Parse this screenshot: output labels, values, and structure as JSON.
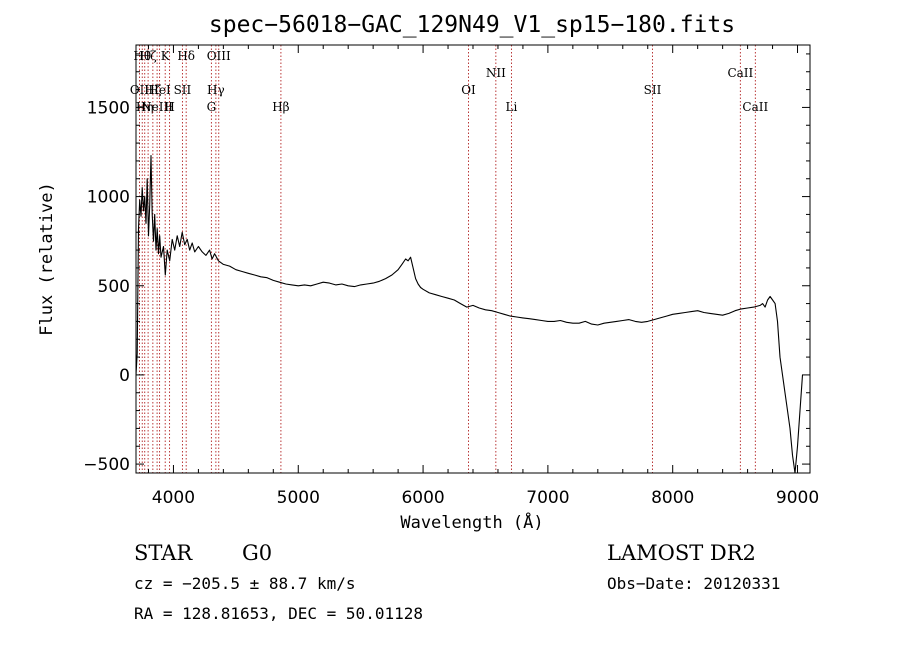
{
  "chart_data": {
    "type": "line",
    "title": "spec−56018−GAC_129N49_V1_sp15−180.fits",
    "xlabel": "Wavelength (Å)",
    "ylabel": "Flux (relative)",
    "xlim": [
      3700,
      9100
    ],
    "ylim": [
      -550,
      1850
    ],
    "x_ticks": [
      4000,
      5000,
      6000,
      7000,
      8000,
      9000
    ],
    "y_ticks": [
      -500,
      0,
      500,
      1000,
      1500
    ],
    "x_tick_labels": [
      "4000",
      "5000",
      "6000",
      "7000",
      "8000",
      "9000"
    ],
    "y_tick_labels": [
      "−500",
      "0",
      "500",
      "1000",
      "1500"
    ],
    "grid": false,
    "line_color": "#000000",
    "marker_color": "#b22222",
    "series": [
      {
        "points": [
          [
            3700,
            0
          ],
          [
            3710,
            120
          ],
          [
            3720,
            820
          ],
          [
            3730,
            980
          ],
          [
            3740,
            890
          ],
          [
            3750,
            1050
          ],
          [
            3760,
            920
          ],
          [
            3770,
            1000
          ],
          [
            3780,
            850
          ],
          [
            3790,
            1100
          ],
          [
            3800,
            780
          ],
          [
            3810,
            950
          ],
          [
            3820,
            1230
          ],
          [
            3830,
            900
          ],
          [
            3840,
            750
          ],
          [
            3850,
            900
          ],
          [
            3860,
            700
          ],
          [
            3870,
            820
          ],
          [
            3880,
            680
          ],
          [
            3890,
            780
          ],
          [
            3900,
            660
          ],
          [
            3920,
            720
          ],
          [
            3935,
            560
          ],
          [
            3950,
            700
          ],
          [
            3970,
            640
          ],
          [
            3990,
            760
          ],
          [
            4010,
            700
          ],
          [
            4030,
            780
          ],
          [
            4050,
            720
          ],
          [
            4070,
            800
          ],
          [
            4090,
            730
          ],
          [
            4110,
            760
          ],
          [
            4130,
            700
          ],
          [
            4150,
            740
          ],
          [
            4170,
            690
          ],
          [
            4200,
            720
          ],
          [
            4230,
            690
          ],
          [
            4260,
            670
          ],
          [
            4290,
            700
          ],
          [
            4310,
            650
          ],
          [
            4330,
            680
          ],
          [
            4360,
            640
          ],
          [
            4400,
            620
          ],
          [
            4450,
            610
          ],
          [
            4500,
            590
          ],
          [
            4550,
            580
          ],
          [
            4600,
            570
          ],
          [
            4650,
            560
          ],
          [
            4700,
            550
          ],
          [
            4750,
            545
          ],
          [
            4800,
            530
          ],
          [
            4850,
            520
          ],
          [
            4900,
            510
          ],
          [
            4950,
            505
          ],
          [
            5000,
            500
          ],
          [
            5050,
            505
          ],
          [
            5100,
            500
          ],
          [
            5150,
            510
          ],
          [
            5200,
            520
          ],
          [
            5250,
            515
          ],
          [
            5300,
            505
          ],
          [
            5350,
            510
          ],
          [
            5400,
            500
          ],
          [
            5450,
            495
          ],
          [
            5500,
            505
          ],
          [
            5550,
            510
          ],
          [
            5600,
            515
          ],
          [
            5650,
            525
          ],
          [
            5700,
            540
          ],
          [
            5750,
            560
          ],
          [
            5800,
            590
          ],
          [
            5830,
            620
          ],
          [
            5860,
            650
          ],
          [
            5880,
            640
          ],
          [
            5900,
            660
          ],
          [
            5920,
            600
          ],
          [
            5940,
            540
          ],
          [
            5960,
            510
          ],
          [
            5980,
            490
          ],
          [
            6000,
            480
          ],
          [
            6050,
            460
          ],
          [
            6100,
            450
          ],
          [
            6150,
            440
          ],
          [
            6200,
            430
          ],
          [
            6250,
            420
          ],
          [
            6300,
            400
          ],
          [
            6350,
            380
          ],
          [
            6400,
            390
          ],
          [
            6450,
            375
          ],
          [
            6500,
            365
          ],
          [
            6550,
            360
          ],
          [
            6600,
            350
          ],
          [
            6650,
            340
          ],
          [
            6700,
            330
          ],
          [
            6750,
            325
          ],
          [
            6800,
            320
          ],
          [
            6850,
            315
          ],
          [
            6900,
            310
          ],
          [
            6950,
            305
          ],
          [
            7000,
            300
          ],
          [
            7050,
            300
          ],
          [
            7100,
            305
          ],
          [
            7150,
            295
          ],
          [
            7200,
            290
          ],
          [
            7250,
            290
          ],
          [
            7300,
            300
          ],
          [
            7350,
            285
          ],
          [
            7400,
            280
          ],
          [
            7450,
            290
          ],
          [
            7500,
            295
          ],
          [
            7550,
            300
          ],
          [
            7600,
            305
          ],
          [
            7650,
            310
          ],
          [
            7700,
            300
          ],
          [
            7750,
            295
          ],
          [
            7800,
            300
          ],
          [
            7850,
            310
          ],
          [
            7900,
            320
          ],
          [
            7950,
            330
          ],
          [
            8000,
            340
          ],
          [
            8050,
            345
          ],
          [
            8100,
            350
          ],
          [
            8150,
            355
          ],
          [
            8200,
            360
          ],
          [
            8250,
            350
          ],
          [
            8300,
            345
          ],
          [
            8350,
            340
          ],
          [
            8400,
            335
          ],
          [
            8450,
            345
          ],
          [
            8500,
            360
          ],
          [
            8550,
            370
          ],
          [
            8600,
            375
          ],
          [
            8650,
            380
          ],
          [
            8700,
            390
          ],
          [
            8720,
            400
          ],
          [
            8740,
            380
          ],
          [
            8760,
            420
          ],
          [
            8780,
            440
          ],
          [
            8800,
            420
          ],
          [
            8820,
            400
          ],
          [
            8840,
            300
          ],
          [
            8860,
            100
          ],
          [
            8880,
            0
          ],
          [
            8900,
            -100
          ],
          [
            8920,
            -200
          ],
          [
            8940,
            -300
          ],
          [
            8960,
            -450
          ],
          [
            8980,
            -550
          ],
          [
            9000,
            -400
          ],
          [
            9020,
            -200
          ],
          [
            9040,
            0
          ]
        ]
      }
    ],
    "line_markers": [
      {
        "wl": 3728,
        "label": "OII",
        "row": 2
      },
      {
        "wl": 3750,
        "label": "Hθ",
        "row": 0
      },
      {
        "wl": 3770,
        "label": "Hη",
        "row": 3
      },
      {
        "wl": 3797,
        "label": "Hζ",
        "row": 0
      },
      {
        "wl": 3835,
        "label": "Hζ",
        "row": 2
      },
      {
        "wl": 3869,
        "label": "NeIII",
        "row": 3
      },
      {
        "wl": 3889,
        "label": "HeI",
        "row": 2
      },
      {
        "wl": 3934,
        "label": "K",
        "row": 0
      },
      {
        "wl": 3969,
        "label": "H",
        "row": 3
      },
      {
        "wl": 4072,
        "label": "SII",
        "row": 2
      },
      {
        "wl": 4102,
        "label": "Hδ",
        "row": 0
      },
      {
        "wl": 4304,
        "label": "G",
        "row": 3
      },
      {
        "wl": 4340,
        "label": "Hγ",
        "row": 2
      },
      {
        "wl": 4363,
        "label": "OIII",
        "row": 0
      },
      {
        "wl": 4861,
        "label": "Hβ",
        "row": 3
      },
      {
        "wl": 6364,
        "label": "OI",
        "row": 2
      },
      {
        "wl": 6583,
        "label": "NII",
        "row": 1
      },
      {
        "wl": 6708,
        "label": "Li",
        "row": 3
      },
      {
        "wl": 7838,
        "label": "SII",
        "row": 2
      },
      {
        "wl": 8542,
        "label": "CaII",
        "row": 1
      },
      {
        "wl": 8662,
        "label": "CaII",
        "row": 3
      }
    ]
  },
  "info": {
    "class": "STAR",
    "subclass": "G0",
    "survey": "LAMOST DR2",
    "cz": "cz = −205.5 ± 88.7 km/s",
    "obs_date": "Obs−Date: 20120331",
    "radec": "RA = 128.81653, DEC =  50.01128"
  }
}
